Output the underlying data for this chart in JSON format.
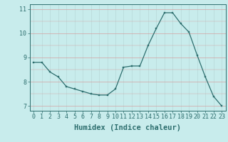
{
  "x": [
    0,
    1,
    2,
    3,
    4,
    5,
    6,
    7,
    8,
    9,
    10,
    11,
    12,
    13,
    14,
    15,
    16,
    17,
    18,
    19,
    20,
    21,
    22,
    23
  ],
  "y": [
    8.8,
    8.8,
    8.4,
    8.2,
    7.8,
    7.7,
    7.6,
    7.5,
    7.45,
    7.45,
    7.7,
    8.6,
    8.65,
    8.65,
    9.5,
    10.2,
    10.85,
    10.85,
    10.4,
    10.05,
    9.1,
    8.2,
    7.4,
    7.0
  ],
  "line_color": "#2d6e6e",
  "marker_color": "#2d6e6e",
  "bg_color": "#c8ecec",
  "grid_color_h": "#d4a0a0",
  "grid_color_v": "#b8d8d8",
  "xlabel": "Humidex (Indice chaleur)",
  "ylim": [
    6.8,
    11.2
  ],
  "xlim": [
    -0.5,
    23.5
  ],
  "yticks": [
    7,
    8,
    9,
    10,
    11
  ],
  "xticks": [
    0,
    1,
    2,
    3,
    4,
    5,
    6,
    7,
    8,
    9,
    10,
    11,
    12,
    13,
    14,
    15,
    16,
    17,
    18,
    19,
    20,
    21,
    22,
    23
  ],
  "tick_fontsize": 6,
  "xlabel_fontsize": 7.5
}
